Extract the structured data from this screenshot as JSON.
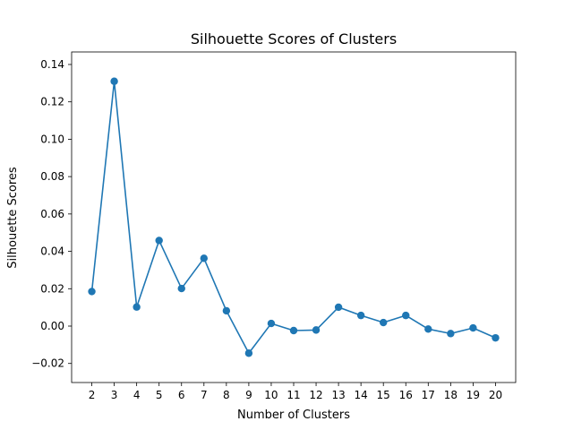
{
  "chart_data": {
    "type": "line",
    "title": "Silhouette Scores of Clusters",
    "xlabel": "Number of Clusters",
    "ylabel": "Silhouette Scores",
    "x": [
      2,
      3,
      4,
      5,
      6,
      7,
      8,
      9,
      10,
      11,
      12,
      13,
      14,
      15,
      16,
      17,
      18,
      19,
      20
    ],
    "series": [
      {
        "values": [
          0.0185,
          0.131,
          0.0102,
          0.0458,
          0.0201,
          0.0363,
          0.0082,
          -0.0145,
          0.0014,
          -0.0024,
          -0.0021,
          0.0101,
          0.0057,
          0.0019,
          0.0057,
          -0.0016,
          -0.004,
          -0.001,
          -0.0063
        ],
        "color": "#1f77b4",
        "marker": "circle"
      }
    ],
    "xticks": [
      "2",
      "3",
      "4",
      "5",
      "6",
      "7",
      "8",
      "9",
      "10",
      "11",
      "12",
      "13",
      "14",
      "15",
      "16",
      "17",
      "18",
      "19",
      "20"
    ],
    "yticks": [
      "−0.02",
      "0.00",
      "0.02",
      "0.04",
      "0.06",
      "0.08",
      "0.10",
      "0.12",
      "0.14"
    ],
    "ytick_values": [
      -0.02,
      0.0,
      0.02,
      0.04,
      0.06,
      0.08,
      0.1,
      0.12,
      0.14
    ],
    "xlim": [
      1.1,
      20.9
    ],
    "ylim": [
      -0.0302,
      0.1467
    ],
    "grid": false,
    "legend": false
  }
}
